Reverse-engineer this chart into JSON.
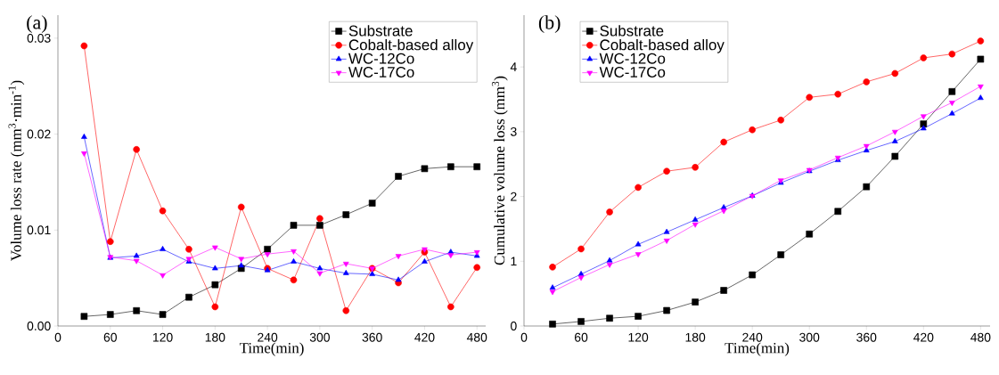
{
  "chart_data": [
    {
      "type": "line",
      "xlabel": "Time(min)",
      "ylabel": "Volume loss rate (mm$^{3}$·min$^{-1}$)",
      "annotations": [
        "(a)"
      ],
      "legend": "top right",
      "grid": false,
      "line_style": "solid",
      "x": [
        30,
        60,
        90,
        120,
        150,
        180,
        210,
        240,
        270,
        300,
        330,
        360,
        390,
        420,
        450,
        480
      ],
      "xlim": [
        0,
        490
      ],
      "xticks": [
        0,
        60,
        120,
        180,
        240,
        300,
        360,
        420,
        480
      ],
      "ylim": [
        0,
        0.0324
      ],
      "yticks": [
        {
          "value": 0,
          "label": "0.00"
        },
        {
          "value": 0.01,
          "label": "0.01"
        },
        {
          "value": 0.02,
          "label": "0.02"
        },
        {
          "value": 0.03,
          "label": "0.03"
        }
      ],
      "series": [
        {
          "name": "Substrate",
          "color": "#000000",
          "marker": "square",
          "values": [
            0.001,
            0.0012,
            0.0016,
            0.0012,
            0.003,
            0.0043,
            0.006,
            0.008,
            0.0105,
            0.0105,
            0.0116,
            0.0128,
            0.0156,
            0.0164,
            0.0166,
            0.0166
          ]
        },
        {
          "name": "Cobalt-based alloy",
          "color": "#ff0000",
          "marker": "circle",
          "values": [
            0.0292,
            0.0088,
            0.0184,
            0.012,
            0.008,
            0.002,
            0.0124,
            0.006,
            0.0048,
            0.0112,
            0.0016,
            0.006,
            0.0045,
            0.0077,
            0.002,
            0.0061
          ]
        },
        {
          "name": "WC-12Co",
          "color": "#0000ff",
          "marker": "triangle",
          "values": [
            0.0197,
            0.0071,
            0.0073,
            0.008,
            0.0067,
            0.006,
            0.0063,
            0.0058,
            0.0067,
            0.006,
            0.0055,
            0.0054,
            0.0048,
            0.0067,
            0.0077,
            0.0073
          ]
        },
        {
          "name": "WC-17Co",
          "color": "#ff00ff",
          "marker": "triangle-down",
          "values": [
            0.018,
            0.0072,
            0.0068,
            0.0053,
            0.007,
            0.0082,
            0.007,
            0.0075,
            0.0078,
            0.0055,
            0.0065,
            0.006,
            0.0073,
            0.008,
            0.0074,
            0.0077
          ]
        }
      ]
    },
    {
      "type": "line",
      "xlabel": "Time(min)",
      "ylabel": "Cumulative volume loss (mm$^{3}$)",
      "annotations": [
        "(b)"
      ],
      "legend": "top left",
      "grid": false,
      "line_style": "solid",
      "x": [
        30,
        60,
        90,
        120,
        150,
        180,
        210,
        240,
        270,
        300,
        330,
        360,
        390,
        420,
        450,
        480
      ],
      "xlim": [
        0,
        490
      ],
      "xticks": [
        0,
        60,
        120,
        180,
        240,
        300,
        360,
        420,
        480
      ],
      "ylim": [
        0,
        4.8
      ],
      "yticks": [
        0,
        1,
        2,
        3,
        4
      ],
      "series": [
        {
          "name": "Substrate",
          "color": "#000000",
          "marker": "square",
          "values": [
            0.03,
            0.07,
            0.12,
            0.15,
            0.24,
            0.37,
            0.55,
            0.79,
            1.1,
            1.42,
            1.77,
            2.15,
            2.62,
            3.12,
            3.62,
            4.12
          ]
        },
        {
          "name": "Cobalt-based alloy",
          "color": "#ff0000",
          "marker": "circle",
          "values": [
            0.91,
            1.19,
            1.76,
            2.14,
            2.39,
            2.45,
            2.84,
            3.03,
            3.18,
            3.53,
            3.58,
            3.77,
            3.9,
            4.14,
            4.2,
            4.4
          ]
        },
        {
          "name": "WC-12Co",
          "color": "#0000ff",
          "marker": "triangle",
          "values": [
            0.59,
            0.8,
            1.01,
            1.26,
            1.45,
            1.64,
            1.83,
            2.01,
            2.21,
            2.39,
            2.56,
            2.71,
            2.85,
            3.05,
            3.28,
            3.52
          ]
        },
        {
          "name": "WC-17Co",
          "color": "#ff00ff",
          "marker": "triangle-down",
          "values": [
            0.53,
            0.75,
            0.95,
            1.11,
            1.32,
            1.57,
            1.78,
            2.01,
            2.25,
            2.41,
            2.6,
            2.78,
            3.0,
            3.24,
            3.45,
            3.7
          ]
        }
      ]
    }
  ]
}
